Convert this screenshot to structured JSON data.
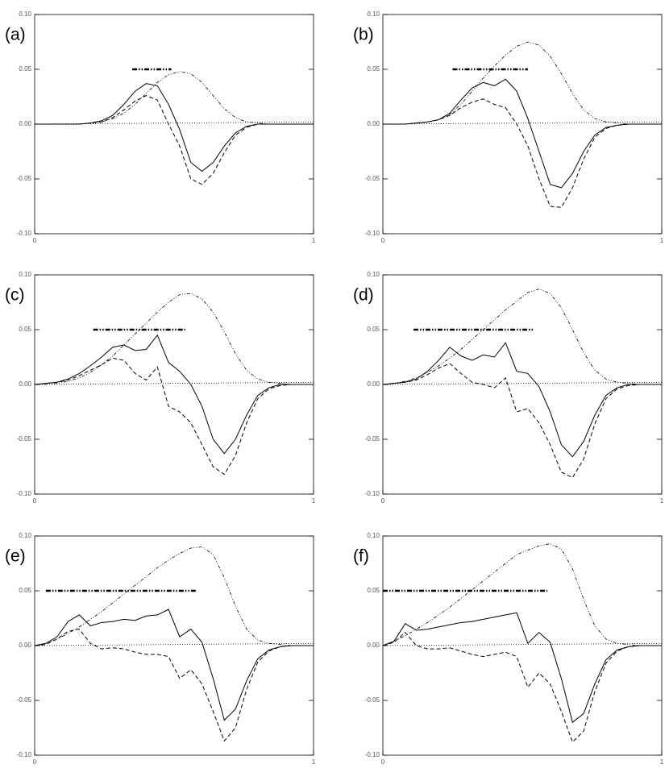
{
  "chart_data": [
    {
      "type": "line",
      "title": "(a)",
      "xlim": [
        0,
        1
      ],
      "ylim": [
        -0.1,
        0.1
      ],
      "xticks": [
        0,
        1
      ],
      "yticks": [
        {
          "value": -0.1,
          "label": "-0.10"
        },
        {
          "value": -0.05,
          "label": "-0.05"
        },
        {
          "value": 0,
          "label": "0.00"
        },
        {
          "value": 0.05,
          "label": "0.05"
        },
        {
          "value": 0.1,
          "label": "0.10"
        }
      ],
      "x": [
        0,
        0.04,
        0.08,
        0.12,
        0.16,
        0.2,
        0.24,
        0.28,
        0.32,
        0.36,
        0.4,
        0.44,
        0.48,
        0.52,
        0.56,
        0.6,
        0.64,
        0.68,
        0.72,
        0.76,
        0.8,
        0.84,
        0.88,
        0.92,
        0.96,
        1
      ],
      "series": [
        {
          "color": "#000000",
          "style": "dashdotdot",
          "width": 0.8,
          "values": [
            0,
            0,
            0,
            0,
            0,
            0.001,
            0.002,
            0.005,
            0.01,
            0.018,
            0.028,
            0.038,
            0.045,
            0.048,
            0.046,
            0.038,
            0.026,
            0.014,
            0.006,
            0.002,
            0.001,
            0,
            0,
            0,
            0,
            0
          ]
        },
        {
          "color": "#000000",
          "style": "solid",
          "width": 1,
          "values": [
            0,
            0,
            0,
            0,
            0,
            0.001,
            0.003,
            0.008,
            0.018,
            0.03,
            0.037,
            0.035,
            0.018,
            -0.005,
            -0.035,
            -0.043,
            -0.035,
            -0.02,
            -0.008,
            -0.002,
            0,
            0,
            0,
            0,
            0,
            0
          ]
        },
        {
          "color": "#000000",
          "style": "dashed",
          "width": 1,
          "values": [
            0,
            0,
            0,
            0,
            0,
            0.001,
            0.002,
            0.006,
            0.013,
            0.021,
            0.026,
            0.022,
            0,
            -0.02,
            -0.05,
            -0.055,
            -0.045,
            -0.026,
            -0.01,
            -0.003,
            0,
            0,
            0,
            0,
            0,
            0
          ]
        },
        {
          "color": "#000000",
          "style": "dotted",
          "width": 0.8,
          "x": [
            0,
            1
          ],
          "values": [
            0,
            0.002
          ]
        },
        {
          "color": "#000000",
          "style": "dashdot",
          "width": 2.5,
          "x": [
            0.35,
            0.49
          ],
          "values": [
            0.05,
            0.05
          ]
        }
      ]
    },
    {
      "type": "line",
      "title": "(b)",
      "xlim": [
        0,
        1
      ],
      "ylim": [
        -0.1,
        0.1
      ],
      "xticks": [
        0,
        1
      ],
      "yticks": [
        {
          "value": -0.1,
          "label": "-0.10"
        },
        {
          "value": -0.05,
          "label": "-0.05"
        },
        {
          "value": 0,
          "label": "0.00"
        },
        {
          "value": 0.05,
          "label": "0.05"
        },
        {
          "value": 0.1,
          "label": "0.10"
        }
      ],
      "x": [
        0,
        0.04,
        0.08,
        0.12,
        0.16,
        0.2,
        0.24,
        0.28,
        0.32,
        0.36,
        0.4,
        0.44,
        0.48,
        0.52,
        0.56,
        0.6,
        0.64,
        0.68,
        0.72,
        0.76,
        0.8,
        0.84,
        0.88,
        0.92,
        0.96,
        1
      ],
      "series": [
        {
          "color": "#000000",
          "style": "dashdotdot",
          "width": 0.8,
          "values": [
            0,
            0,
            0,
            0.001,
            0.002,
            0.004,
            0.009,
            0.018,
            0.03,
            0.042,
            0.053,
            0.063,
            0.071,
            0.075,
            0.072,
            0.062,
            0.046,
            0.028,
            0.013,
            0.005,
            0.002,
            0.001,
            0,
            0,
            0,
            0
          ]
        },
        {
          "color": "#000000",
          "style": "solid",
          "width": 1,
          "values": [
            0,
            0,
            0,
            0.001,
            0.002,
            0.004,
            0.01,
            0.022,
            0.033,
            0.038,
            0.035,
            0.041,
            0.03,
            0.005,
            -0.025,
            -0.055,
            -0.058,
            -0.045,
            -0.025,
            -0.01,
            -0.003,
            -0.001,
            0,
            0,
            0,
            0
          ]
        },
        {
          "color": "#000000",
          "style": "dashed",
          "width": 1,
          "values": [
            0,
            0,
            0,
            0.001,
            0.002,
            0.004,
            0.008,
            0.015,
            0.02,
            0.023,
            0.018,
            0.015,
            0,
            -0.02,
            -0.05,
            -0.075,
            -0.076,
            -0.058,
            -0.032,
            -0.012,
            -0.004,
            -0.001,
            0,
            0,
            0,
            0
          ]
        },
        {
          "color": "#000000",
          "style": "dotted",
          "width": 0.8,
          "x": [
            0,
            1
          ],
          "values": [
            0,
            0.002
          ]
        },
        {
          "color": "#000000",
          "style": "dashdot",
          "width": 2.5,
          "x": [
            0.25,
            0.52
          ],
          "values": [
            0.05,
            0.05
          ]
        }
      ]
    },
    {
      "type": "line",
      "title": "(c)",
      "xlim": [
        0,
        1
      ],
      "ylim": [
        -0.1,
        0.1
      ],
      "xticks": [
        0,
        1
      ],
      "yticks": [
        {
          "value": -0.1,
          "label": "-0.10"
        },
        {
          "value": -0.05,
          "label": "-0.05"
        },
        {
          "value": 0,
          "label": "0.00"
        },
        {
          "value": 0.05,
          "label": "0.05"
        },
        {
          "value": 0.1,
          "label": "0.10"
        }
      ],
      "x": [
        0,
        0.04,
        0.08,
        0.12,
        0.16,
        0.2,
        0.24,
        0.28,
        0.32,
        0.36,
        0.4,
        0.44,
        0.48,
        0.52,
        0.56,
        0.6,
        0.64,
        0.68,
        0.72,
        0.76,
        0.8,
        0.84,
        0.88,
        0.92,
        0.96,
        1
      ],
      "series": [
        {
          "color": "#000000",
          "style": "dashdotdot",
          "width": 0.8,
          "values": [
            0,
            0,
            0.001,
            0.003,
            0.006,
            0.011,
            0.018,
            0.026,
            0.036,
            0.046,
            0.056,
            0.066,
            0.075,
            0.082,
            0.083,
            0.078,
            0.066,
            0.048,
            0.028,
            0.013,
            0.005,
            0.002,
            0.001,
            0,
            0,
            0
          ]
        },
        {
          "color": "#000000",
          "style": "solid",
          "width": 1,
          "values": [
            0,
            0.001,
            0.002,
            0.005,
            0.01,
            0.017,
            0.025,
            0.034,
            0.036,
            0.031,
            0.032,
            0.045,
            0.02,
            0.012,
            0,
            -0.02,
            -0.05,
            -0.063,
            -0.05,
            -0.028,
            -0.01,
            -0.003,
            0,
            0,
            0,
            0
          ]
        },
        {
          "color": "#000000",
          "style": "dashed",
          "width": 1,
          "values": [
            0,
            0.001,
            0.002,
            0.004,
            0.008,
            0.013,
            0.018,
            0.024,
            0.022,
            0.01,
            0.004,
            0.016,
            -0.02,
            -0.025,
            -0.035,
            -0.055,
            -0.075,
            -0.082,
            -0.065,
            -0.035,
            -0.013,
            -0.004,
            -0.001,
            0,
            0,
            0
          ]
        },
        {
          "color": "#000000",
          "style": "dotted",
          "width": 0.8,
          "x": [
            0,
            1
          ],
          "values": [
            0,
            0.002
          ]
        },
        {
          "color": "#000000",
          "style": "dashdot",
          "width": 2.5,
          "x": [
            0.21,
            0.54
          ],
          "values": [
            0.05,
            0.05
          ]
        }
      ]
    },
    {
      "type": "line",
      "title": "(d)",
      "xlim": [
        0,
        1
      ],
      "ylim": [
        -0.1,
        0.1
      ],
      "xticks": [
        0,
        1
      ],
      "yticks": [
        {
          "value": -0.1,
          "label": "-0.10"
        },
        {
          "value": -0.05,
          "label": "-0.05"
        },
        {
          "value": 0,
          "label": "0.00"
        },
        {
          "value": 0.05,
          "label": "0.05"
        },
        {
          "value": 0.1,
          "label": "0.10"
        }
      ],
      "x": [
        0,
        0.04,
        0.08,
        0.12,
        0.16,
        0.2,
        0.24,
        0.28,
        0.32,
        0.36,
        0.4,
        0.44,
        0.48,
        0.52,
        0.56,
        0.6,
        0.64,
        0.68,
        0.72,
        0.76,
        0.8,
        0.84,
        0.88,
        0.92,
        0.96,
        1
      ],
      "series": [
        {
          "color": "#000000",
          "style": "dashdotdot",
          "width": 0.8,
          "values": [
            0,
            0.001,
            0.003,
            0.006,
            0.011,
            0.017,
            0.024,
            0.032,
            0.041,
            0.05,
            0.059,
            0.068,
            0.076,
            0.084,
            0.087,
            0.083,
            0.07,
            0.05,
            0.029,
            0.013,
            0.005,
            0.002,
            0.001,
            0,
            0,
            0
          ]
        },
        {
          "color": "#000000",
          "style": "solid",
          "width": 1,
          "values": [
            0,
            0.001,
            0.002,
            0.005,
            0.012,
            0.022,
            0.034,
            0.026,
            0.022,
            0.027,
            0.025,
            0.038,
            0.012,
            0.01,
            -0.002,
            -0.025,
            -0.055,
            -0.066,
            -0.052,
            -0.028,
            -0.01,
            -0.003,
            0,
            0,
            0,
            0
          ]
        },
        {
          "color": "#000000",
          "style": "dashed",
          "width": 1,
          "values": [
            0,
            0.001,
            0.002,
            0.004,
            0.009,
            0.015,
            0.019,
            0.01,
            0.002,
            0,
            -0.003,
            0.006,
            -0.025,
            -0.022,
            -0.035,
            -0.055,
            -0.08,
            -0.085,
            -0.068,
            -0.036,
            -0.013,
            -0.004,
            -0.001,
            0,
            0,
            0
          ]
        },
        {
          "color": "#000000",
          "style": "dotted",
          "width": 0.8,
          "x": [
            0,
            1
          ],
          "values": [
            0,
            0.002
          ]
        },
        {
          "color": "#000000",
          "style": "dashdot",
          "width": 2.5,
          "x": [
            0.11,
            0.54
          ],
          "values": [
            0.05,
            0.05
          ]
        }
      ]
    },
    {
      "type": "line",
      "title": "(e)",
      "xlim": [
        0,
        1
      ],
      "ylim": [
        -0.1,
        0.1
      ],
      "xticks": [
        0,
        1
      ],
      "yticks": [
        {
          "value": -0.1,
          "label": "-0.10"
        },
        {
          "value": -0.05,
          "label": "-0.05"
        },
        {
          "value": 0,
          "label": "0.00"
        },
        {
          "value": 0.05,
          "label": "0.05"
        },
        {
          "value": 0.1,
          "label": "0.10"
        }
      ],
      "x": [
        0,
        0.04,
        0.08,
        0.12,
        0.16,
        0.2,
        0.24,
        0.28,
        0.32,
        0.36,
        0.4,
        0.44,
        0.48,
        0.52,
        0.56,
        0.6,
        0.64,
        0.68,
        0.72,
        0.76,
        0.8,
        0.84,
        0.88,
        0.92,
        0.96,
        1
      ],
      "series": [
        {
          "color": "#000000",
          "style": "dashdotdot",
          "width": 0.8,
          "values": [
            0,
            0.002,
            0.006,
            0.011,
            0.017,
            0.024,
            0.031,
            0.039,
            0.047,
            0.055,
            0.063,
            0.071,
            0.078,
            0.084,
            0.089,
            0.09,
            0.083,
            0.062,
            0.036,
            0.015,
            0.005,
            0.002,
            0.001,
            0,
            0,
            0
          ]
        },
        {
          "color": "#000000",
          "style": "solid",
          "width": 1,
          "values": [
            0,
            0.002,
            0.008,
            0.022,
            0.028,
            0.018,
            0.021,
            0.022,
            0.024,
            0.023,
            0.027,
            0.028,
            0.033,
            0.008,
            0.015,
            0.003,
            -0.03,
            -0.068,
            -0.058,
            -0.032,
            -0.012,
            -0.004,
            -0.001,
            0,
            0,
            0
          ]
        },
        {
          "color": "#000000",
          "style": "dashed",
          "width": 1,
          "values": [
            0,
            0.001,
            0.006,
            0.013,
            0.015,
            0.002,
            -0.003,
            -0.002,
            -0.003,
            -0.006,
            -0.008,
            -0.008,
            -0.01,
            -0.03,
            -0.022,
            -0.035,
            -0.06,
            -0.087,
            -0.075,
            -0.04,
            -0.015,
            -0.005,
            -0.001,
            0,
            0,
            0
          ]
        },
        {
          "color": "#000000",
          "style": "dotted",
          "width": 0.8,
          "x": [
            0,
            1
          ],
          "values": [
            0,
            0.002
          ]
        },
        {
          "color": "#000000",
          "style": "dashdot",
          "width": 2.5,
          "x": [
            0.04,
            0.58
          ],
          "values": [
            0.05,
            0.05
          ]
        }
      ]
    },
    {
      "type": "line",
      "title": "(f)",
      "xlim": [
        0,
        1
      ],
      "ylim": [
        -0.1,
        0.1
      ],
      "xticks": [
        0,
        1
      ],
      "yticks": [
        {
          "value": -0.1,
          "label": "-0.10"
        },
        {
          "value": -0.05,
          "label": "-0.05"
        },
        {
          "value": 0,
          "label": "0.00"
        },
        {
          "value": 0.05,
          "label": "0.05"
        },
        {
          "value": 0.1,
          "label": "0.10"
        }
      ],
      "x": [
        0,
        0.04,
        0.08,
        0.12,
        0.16,
        0.2,
        0.24,
        0.28,
        0.32,
        0.36,
        0.4,
        0.44,
        0.48,
        0.52,
        0.56,
        0.6,
        0.64,
        0.68,
        0.72,
        0.76,
        0.8,
        0.84,
        0.88,
        0.92,
        0.96,
        1
      ],
      "series": [
        {
          "color": "#000000",
          "style": "dashdotdot",
          "width": 0.8,
          "values": [
            0,
            0.004,
            0.009,
            0.015,
            0.021,
            0.028,
            0.035,
            0.043,
            0.051,
            0.059,
            0.067,
            0.075,
            0.083,
            0.087,
            0.091,
            0.093,
            0.088,
            0.07,
            0.042,
            0.018,
            0.006,
            0.002,
            0.001,
            0,
            0,
            0
          ]
        },
        {
          "color": "#000000",
          "style": "solid",
          "width": 1,
          "values": [
            0,
            0.004,
            0.02,
            0.014,
            0.015,
            0.017,
            0.019,
            0.021,
            0.022,
            0.024,
            0.026,
            0.028,
            0.03,
            0.002,
            0.012,
            0.003,
            -0.03,
            -0.07,
            -0.062,
            -0.035,
            -0.013,
            -0.004,
            -0.001,
            0,
            0,
            0
          ]
        },
        {
          "color": "#000000",
          "style": "dashed",
          "width": 1,
          "values": [
            0,
            0.003,
            0.012,
            0,
            -0.003,
            -0.003,
            -0.002,
            -0.005,
            -0.008,
            -0.01,
            -0.008,
            -0.006,
            -0.01,
            -0.038,
            -0.025,
            -0.035,
            -0.06,
            -0.088,
            -0.078,
            -0.042,
            -0.016,
            -0.005,
            -0.001,
            0,
            0,
            0
          ]
        },
        {
          "color": "#000000",
          "style": "dotted",
          "width": 0.8,
          "x": [
            0,
            1
          ],
          "values": [
            0,
            0.002
          ]
        },
        {
          "color": "#000000",
          "style": "dashdot",
          "width": 2.5,
          "x": [
            0,
            0.59
          ],
          "values": [
            0.05,
            0.05
          ]
        }
      ]
    }
  ]
}
